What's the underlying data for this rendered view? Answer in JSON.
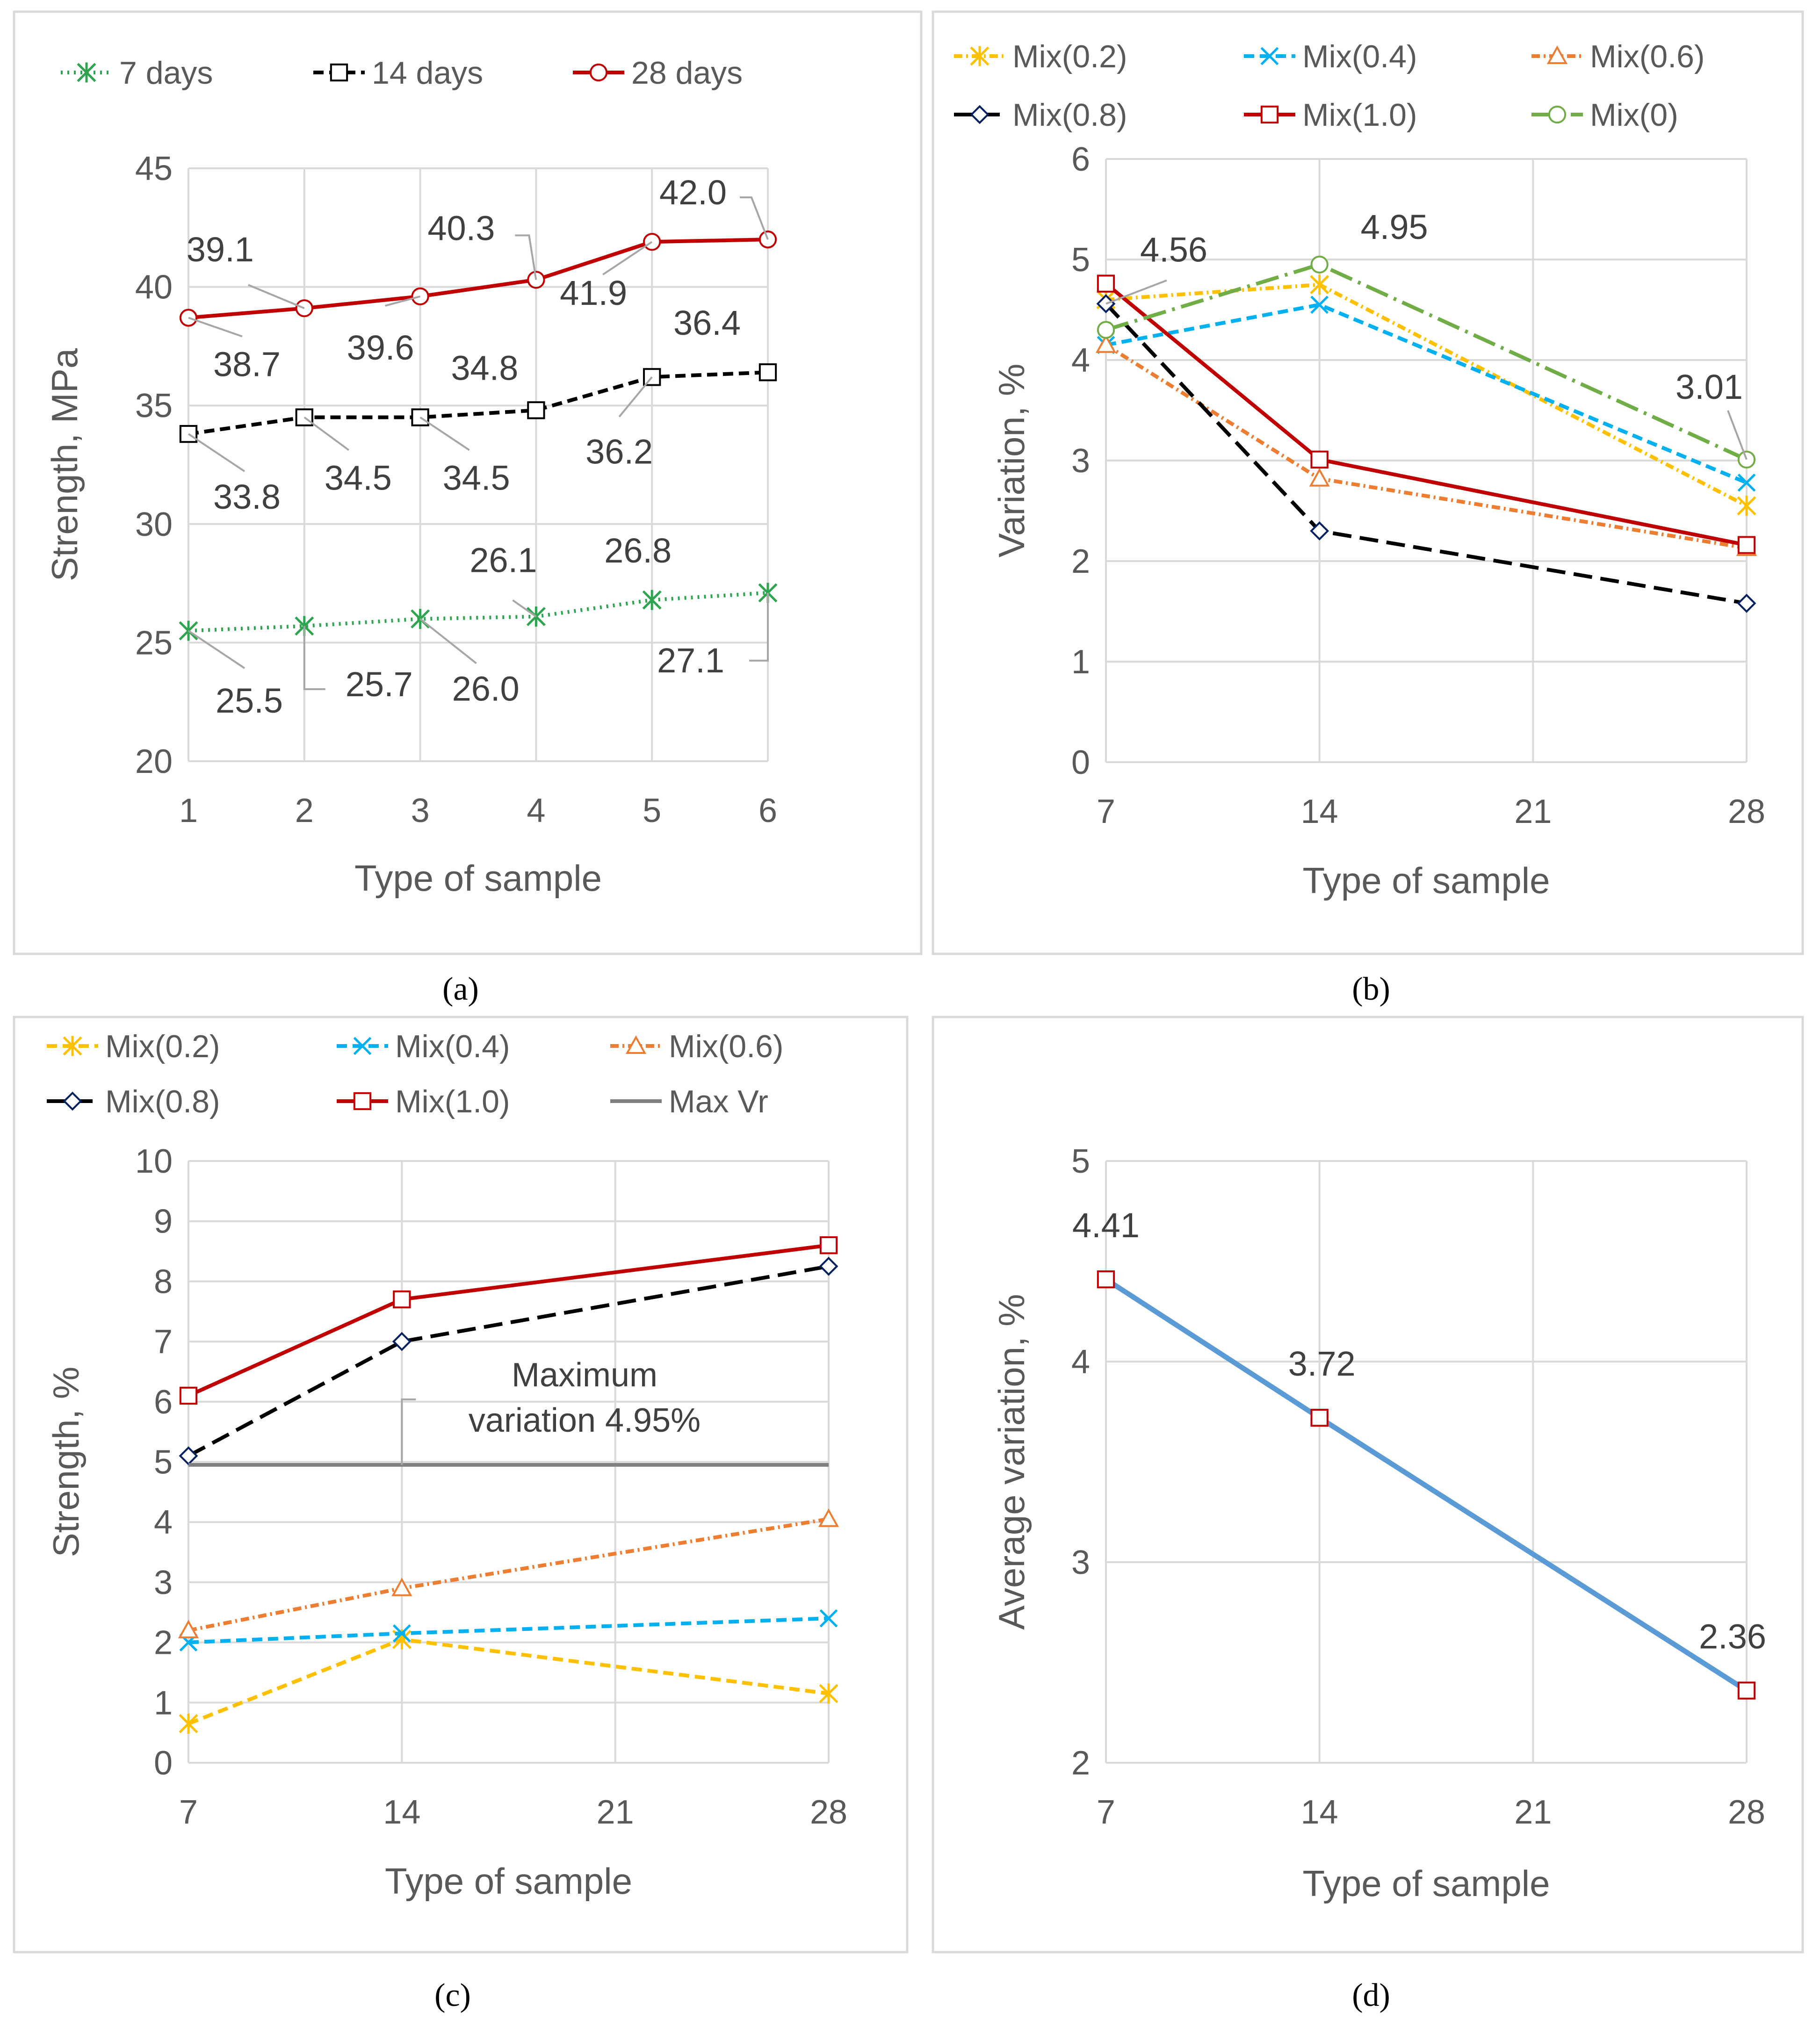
{
  "colors": {
    "green": "#2ea44f",
    "black": "#000000",
    "red": "#c00000",
    "yellow": "#ffc000",
    "cyan": "#00b0f0",
    "orange": "#ed7d31",
    "navy": "#002060",
    "lightgreen": "#70ad47",
    "gray": "#808080",
    "blue": "#5b9bd5",
    "grid": "#d9d9d9",
    "axis_text": "#595959",
    "frame": "#d9d9d9",
    "annotation": "#a6a6a6"
  },
  "chart_data": [
    {
      "id": "a",
      "type": "line",
      "caption": "(a)",
      "xlabel": "Type of sample",
      "ylabel": "Strength, MPa",
      "xlim": [
        1,
        6
      ],
      "ylim": [
        20,
        45
      ],
      "xticks": [
        1,
        2,
        3,
        4,
        5,
        6
      ],
      "yticks": [
        20,
        25,
        30,
        35,
        40,
        45
      ],
      "legend": "top",
      "series": [
        {
          "name": "7 days",
          "color": "green",
          "dash": "dot",
          "marker": "asterisk",
          "x": [
            1,
            2,
            3,
            4,
            5,
            6
          ],
          "values": [
            25.5,
            25.7,
            26.0,
            26.1,
            26.8,
            27.1
          ],
          "labels": [
            "25.5",
            "25.7",
            "26.0",
            "26.1",
            "26.8",
            "27.1"
          ]
        },
        {
          "name": "14 days",
          "color": "black",
          "dash": "dash",
          "marker": "square",
          "x": [
            1,
            2,
            3,
            4,
            5,
            6
          ],
          "values": [
            33.8,
            34.5,
            34.5,
            34.8,
            36.2,
            36.4
          ],
          "labels": [
            "33.8",
            "34.5",
            "34.5",
            "34.8",
            "36.2",
            "36.4"
          ]
        },
        {
          "name": "28 days",
          "color": "red",
          "dash": "solid",
          "marker": "circle",
          "x": [
            1,
            2,
            3,
            4,
            5,
            6
          ],
          "values": [
            38.7,
            39.1,
            39.6,
            40.3,
            41.9,
            42.0
          ],
          "labels": [
            "38.7",
            "39.1",
            "39.6",
            "40.3",
            "41.9",
            "42.0"
          ]
        }
      ]
    },
    {
      "id": "b",
      "type": "line",
      "caption": "(b)",
      "xlabel": "Type of sample",
      "ylabel": "Variation, %",
      "xlim": [
        7,
        28
      ],
      "ylim": [
        0,
        6
      ],
      "xticks": [
        7,
        14,
        21,
        28
      ],
      "yticks": [
        0,
        1,
        2,
        3,
        4,
        5,
        6
      ],
      "legend": "top",
      "series": [
        {
          "name": "Mix(0.2)",
          "color": "yellow",
          "dash": "dashdot",
          "marker": "asterisk",
          "x": [
            7,
            14,
            28
          ],
          "values": [
            4.6,
            4.75,
            2.55
          ]
        },
        {
          "name": "Mix(0.4)",
          "color": "cyan",
          "dash": "dash",
          "marker": "x",
          "x": [
            7,
            14,
            28
          ],
          "values": [
            4.15,
            4.55,
            2.78
          ]
        },
        {
          "name": "Mix(0.6)",
          "color": "orange",
          "dash": "dashdot",
          "marker": "triangle",
          "x": [
            7,
            14,
            28
          ],
          "values": [
            4.15,
            2.82,
            2.13
          ]
        },
        {
          "name": "Mix(0.8)",
          "color": "navy",
          "line_color": "black",
          "dash": "longdash",
          "marker": "diamond",
          "x": [
            7,
            14,
            28
          ],
          "values": [
            4.56,
            2.3,
            1.58
          ]
        },
        {
          "name": "Mix(1.0)",
          "color": "red",
          "dash": "solid",
          "marker": "square",
          "x": [
            7,
            14,
            28
          ],
          "values": [
            4.76,
            3.01,
            2.16
          ]
        },
        {
          "name": "Mix(0)",
          "color": "lightgreen",
          "dash": "longdashdot",
          "marker": "circle",
          "x": [
            7,
            14,
            28
          ],
          "values": [
            4.3,
            4.95,
            3.01
          ]
        }
      ],
      "annotations": [
        "4.56",
        "4.95",
        "3.01"
      ]
    },
    {
      "id": "c",
      "type": "line",
      "caption": "(c)",
      "xlabel": "Type of sample",
      "ylabel": "Strength, %",
      "xlim": [
        7,
        28
      ],
      "ylim": [
        0,
        10
      ],
      "xticks": [
        7,
        14,
        21,
        28
      ],
      "yticks": [
        0,
        1,
        2,
        3,
        4,
        5,
        6,
        7,
        8,
        9,
        10
      ],
      "legend": "top",
      "series": [
        {
          "name": "Mix(0.2)",
          "color": "yellow",
          "dash": "dash",
          "marker": "asterisk",
          "x": [
            7,
            14,
            28
          ],
          "values": [
            0.65,
            2.05,
            1.15
          ]
        },
        {
          "name": "Mix(0.4)",
          "color": "cyan",
          "dash": "dash",
          "marker": "x",
          "x": [
            7,
            14,
            28
          ],
          "values": [
            2.0,
            2.15,
            2.4
          ]
        },
        {
          "name": "Mix(0.6)",
          "color": "orange",
          "dash": "dashdot",
          "marker": "triangle",
          "x": [
            7,
            14,
            28
          ],
          "values": [
            2.2,
            2.9,
            4.05
          ]
        },
        {
          "name": "Mix(0.8)",
          "color": "navy",
          "line_color": "black",
          "dash": "longdash",
          "marker": "diamond",
          "x": [
            7,
            14,
            28
          ],
          "values": [
            5.1,
            7.0,
            8.25
          ]
        },
        {
          "name": "Mix(1.0)",
          "color": "red",
          "dash": "solid",
          "marker": "square",
          "x": [
            7,
            14,
            28
          ],
          "values": [
            6.1,
            7.7,
            8.6
          ]
        },
        {
          "name": "Max Vr",
          "color": "gray",
          "dash": "solid",
          "marker": "none",
          "x": [
            7,
            14,
            28
          ],
          "values": [
            4.95,
            4.95,
            4.95
          ]
        }
      ],
      "annotations": [
        "Maximum",
        "variation 4.95%"
      ]
    },
    {
      "id": "d",
      "type": "line",
      "caption": "(d)",
      "xlabel": "Type of sample",
      "ylabel": "Average variation, %",
      "xlim": [
        7,
        28
      ],
      "ylim": [
        2,
        5
      ],
      "xticks": [
        7,
        14,
        21,
        28
      ],
      "yticks": [
        2,
        3,
        4,
        5
      ],
      "legend": "none",
      "series": [
        {
          "name": "Average variation",
          "color": "blue",
          "marker_color": "red",
          "dash": "solid",
          "marker": "square",
          "x": [
            7,
            14,
            28
          ],
          "values": [
            4.41,
            3.72,
            2.36
          ],
          "labels": [
            "4.41",
            "3.72",
            "2.36"
          ]
        }
      ]
    }
  ]
}
